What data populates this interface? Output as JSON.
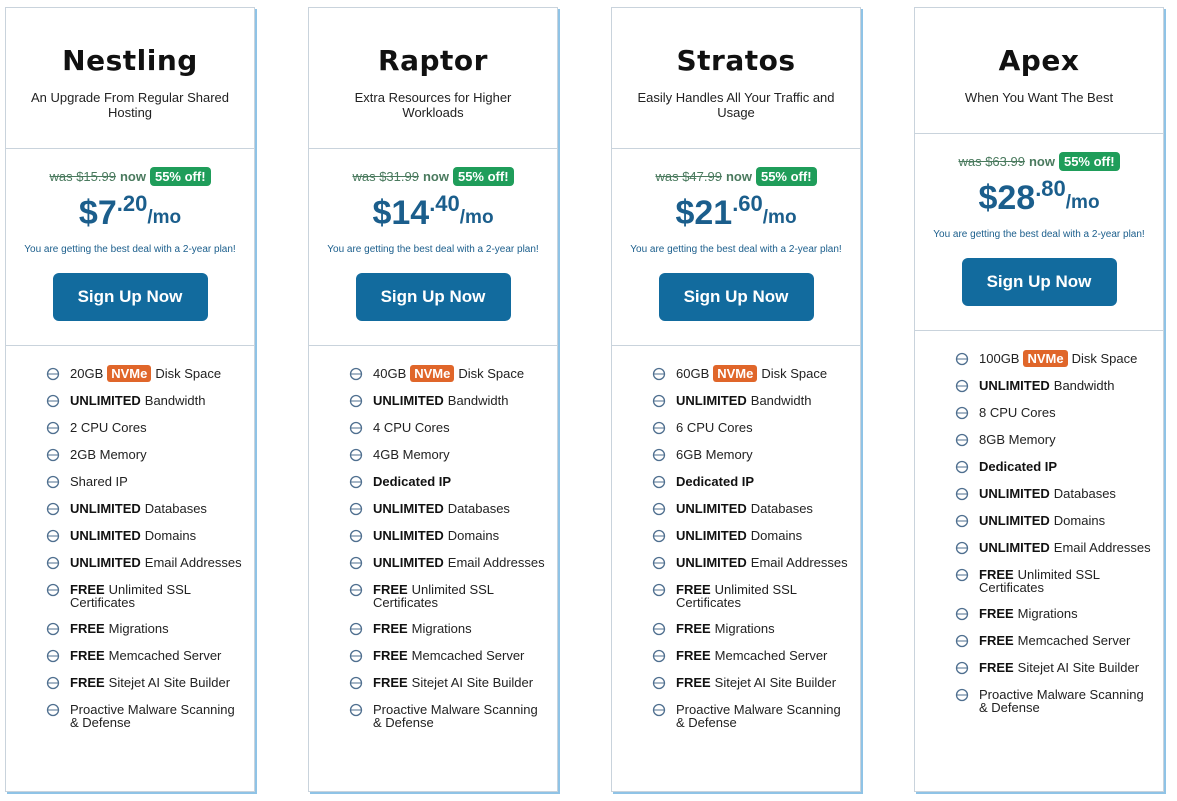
{
  "plans": [
    {
      "name": "Nestling",
      "tagline": "An Upgrade From Regular Shared Hosting",
      "was": "was $15.99",
      "now": "now",
      "discount": "55% off!",
      "price": {
        "currency": "$",
        "whole": "7",
        "cents": ".20",
        "unit": "/mo"
      },
      "note": "You are getting the best deal with a 2-year plan!",
      "button": "Sign Up Now",
      "features": [
        {
          "lead": "20GB",
          "badge": "NVMe",
          "text": "Disk Space"
        },
        {
          "strong": "UNLIMITED",
          "text": "Bandwidth"
        },
        {
          "text": "2 CPU Cores"
        },
        {
          "text": "2GB Memory"
        },
        {
          "text": "Shared IP"
        },
        {
          "strong": "UNLIMITED",
          "text": "Databases"
        },
        {
          "strong": "UNLIMITED",
          "text": "Domains"
        },
        {
          "strong": "UNLIMITED",
          "text": "Email Addresses"
        },
        {
          "strong": "FREE",
          "text": "Unlimited SSL Certificates"
        },
        {
          "strong": "FREE",
          "text": "Migrations"
        },
        {
          "strong": "FREE",
          "text": "Memcached Server"
        },
        {
          "strong": "FREE",
          "text": "Sitejet AI Site Builder"
        },
        {
          "text": "Proactive Malware Scanning & Defense"
        }
      ]
    },
    {
      "name": "Raptor",
      "tagline": "Extra Resources for Higher Workloads",
      "was": "was $31.99",
      "now": "now",
      "discount": "55% off!",
      "price": {
        "currency": "$",
        "whole": "14",
        "cents": ".40",
        "unit": "/mo"
      },
      "note": "You are getting the best deal with a 2-year plan!",
      "button": "Sign Up Now",
      "features": [
        {
          "lead": "40GB",
          "badge": "NVMe",
          "text": "Disk Space"
        },
        {
          "strong": "UNLIMITED",
          "text": "Bandwidth"
        },
        {
          "text": "4 CPU Cores"
        },
        {
          "text": "4GB Memory"
        },
        {
          "strong": "Dedicated IP"
        },
        {
          "strong": "UNLIMITED",
          "text": "Databases"
        },
        {
          "strong": "UNLIMITED",
          "text": "Domains"
        },
        {
          "strong": "UNLIMITED",
          "text": "Email Addresses"
        },
        {
          "strong": "FREE",
          "text": "Unlimited SSL Certificates"
        },
        {
          "strong": "FREE",
          "text": "Migrations"
        },
        {
          "strong": "FREE",
          "text": "Memcached Server"
        },
        {
          "strong": "FREE",
          "text": "Sitejet AI Site Builder"
        },
        {
          "text": "Proactive Malware Scanning & Defense"
        }
      ]
    },
    {
      "name": "Stratos",
      "tagline": "Easily Handles All Your Traffic and Usage",
      "was": "was $47.99",
      "now": "now",
      "discount": "55% off!",
      "price": {
        "currency": "$",
        "whole": "21",
        "cents": ".60",
        "unit": "/mo"
      },
      "note": "You are getting the best deal with a 2-year plan!",
      "button": "Sign Up Now",
      "features": [
        {
          "lead": "60GB",
          "badge": "NVMe",
          "text": "Disk Space"
        },
        {
          "strong": "UNLIMITED",
          "text": "Bandwidth"
        },
        {
          "text": "6 CPU Cores"
        },
        {
          "text": "6GB Memory"
        },
        {
          "strong": "Dedicated IP"
        },
        {
          "strong": "UNLIMITED",
          "text": "Databases"
        },
        {
          "strong": "UNLIMITED",
          "text": "Domains"
        },
        {
          "strong": "UNLIMITED",
          "text": "Email Addresses"
        },
        {
          "strong": "FREE",
          "text": "Unlimited SSL Certificates"
        },
        {
          "strong": "FREE",
          "text": "Migrations"
        },
        {
          "strong": "FREE",
          "text": "Memcached Server"
        },
        {
          "strong": "FREE",
          "text": "Sitejet AI Site Builder"
        },
        {
          "text": "Proactive Malware Scanning & Defense"
        }
      ]
    },
    {
      "name": "Apex",
      "tagline": "When You Want The Best",
      "was": "was $63.99",
      "now": "now",
      "discount": "55% off!",
      "price": {
        "currency": "$",
        "whole": "28",
        "cents": ".80",
        "unit": "/mo"
      },
      "note": "You are getting the best deal with a 2-year plan!",
      "button": "Sign Up Now",
      "features": [
        {
          "lead": "100GB",
          "badge": "NVMe",
          "text": "Disk Space"
        },
        {
          "strong": "UNLIMITED",
          "text": "Bandwidth"
        },
        {
          "text": "8 CPU Cores"
        },
        {
          "text": "8GB Memory"
        },
        {
          "strong": "Dedicated IP"
        },
        {
          "strong": "UNLIMITED",
          "text": "Databases"
        },
        {
          "strong": "UNLIMITED",
          "text": "Domains"
        },
        {
          "strong": "UNLIMITED",
          "text": "Email Addresses"
        },
        {
          "strong": "FREE",
          "text": "Unlimited SSL Certificates"
        },
        {
          "strong": "FREE",
          "text": "Migrations"
        },
        {
          "strong": "FREE",
          "text": "Memcached Server"
        },
        {
          "strong": "FREE",
          "text": "Sitejet AI Site Builder"
        },
        {
          "text": "Proactive Malware Scanning & Defense"
        }
      ]
    }
  ]
}
